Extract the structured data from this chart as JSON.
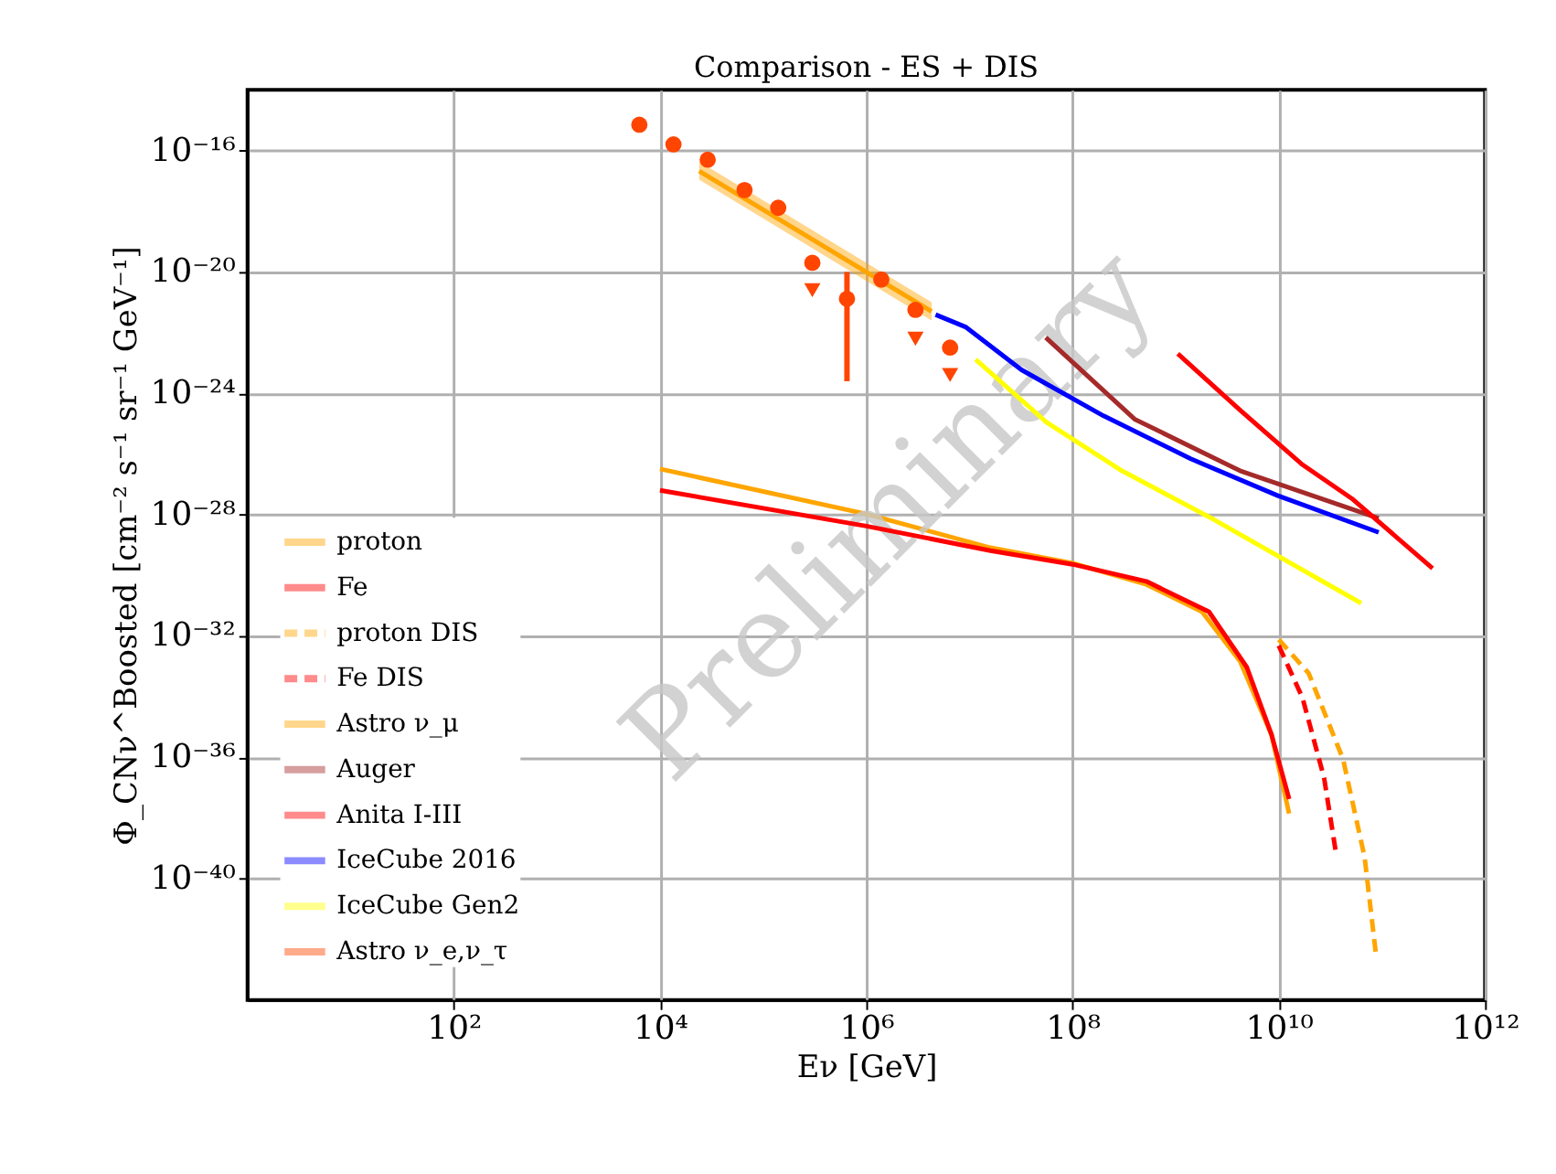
{
  "chart_data": {
    "type": "line",
    "title": "Comparison - ES + DIS",
    "xlabel": "Eν [GeV]",
    "ylabel": "Φ_CNν^Boosted [cm⁻² s⁻¹ sr⁻¹ GeV⁻¹]",
    "log": "xy",
    "xlim": [
      1,
      1000000000000.0
    ],
    "ylim": [
      1e-44,
      1e-14
    ],
    "xticks": [
      {
        "value": 100.0,
        "label": "10²"
      },
      {
        "value": 10000.0,
        "label": "10⁴"
      },
      {
        "value": 1000000.0,
        "label": "10⁶"
      },
      {
        "value": 100000000.0,
        "label": "10⁸"
      },
      {
        "value": 10000000000.0,
        "label": "10¹⁰"
      },
      {
        "value": 1000000000000.0,
        "label": "10¹²"
      }
    ],
    "yticks": [
      {
        "value": 1e-16,
        "label": "10⁻¹⁶"
      },
      {
        "value": 1e-20,
        "label": "10⁻²⁰"
      },
      {
        "value": 1e-24,
        "label": "10⁻²⁴"
      },
      {
        "value": 1e-28,
        "label": "10⁻²⁸"
      },
      {
        "value": 1e-32,
        "label": "10⁻³²"
      },
      {
        "value": 1e-36,
        "label": "10⁻³⁶"
      },
      {
        "value": 1e-40,
        "label": "10⁻⁴⁰"
      }
    ],
    "grid": true,
    "legend": "bottom left",
    "annotations": [
      "Preliminary"
    ],
    "series": [
      {
        "name": "proton",
        "color": "#ffa500",
        "x": [
          10000.0,
          1000000.0,
          16000000.0,
          100000000.0,
          520000000.0,
          1800000000.0,
          4200000000.0,
          8500000000.0,
          12600000000.0
        ],
        "values": [
          3.2e-27,
          1.05e-28,
          8.1e-30,
          2.5e-30,
          5e-31,
          6.3e-32,
          1.5e-33,
          5.6e-36,
          1.4e-38
        ]
      },
      {
        "name": "Fe",
        "color": "#ff0000",
        "x": [
          10000.0,
          1000000.0,
          16000000.0,
          100000000.0,
          520000000.0,
          2100000000.0,
          4900000000.0,
          8500000000.0,
          12600000000.0
        ],
        "values": [
          6.3e-28,
          4.2e-29,
          6.5e-30,
          2.3e-30,
          6.3e-31,
          6.3e-32,
          9.3e-34,
          5.6e-36,
          4.2e-38
        ]
      },
      {
        "name": "proton DIS",
        "color": "#ffa500",
        "line_style": "dashed",
        "x": [
          10000000000.0,
          19500000000.0,
          42000000000.0,
          68000000000.0,
          87000000000.0
        ],
        "values": [
          7.6e-33,
          5.9e-34,
          8.7e-37,
          5.1e-40,
          3.8e-43
        ]
      },
      {
        "name": "Fe DIS",
        "color": "#ff0000",
        "line_style": "dashed",
        "x": [
          10000000000.0,
          17000000000.0,
          27500000000.0,
          36000000000.0
        ],
        "values": [
          4.8e-33,
          9.1e-35,
          2.1e-37,
          6.5e-40
        ]
      },
      {
        "name": "Astro ν_μ",
        "color": "#ffa500",
        "type": "line",
        "x": [
          24000.0,
          4300000.0
        ],
        "values": [
          2.1e-17,
          5e-22
        ],
        "lower": [
          1.1e-17,
          2.5e-22
        ],
        "upper": [
          4.3e-17,
          1e-21
        ]
      },
      {
        "name": "Auger",
        "color": "#a52a2a",
        "x": [
          55000000.0,
          400000000.0,
          4200000000.0,
          93000000000.0
        ],
        "values": [
          6.9e-23,
          1.4e-25,
          2.8e-27,
          7.6e-29
        ]
      },
      {
        "name": "Anita I-III",
        "color": "#ff0000",
        "x": [
          1050000000.0,
          4200000000.0,
          17000000000.0,
          51000000000.0,
          310000000000.0
        ],
        "values": [
          2e-23,
          2.8e-25,
          4.4e-27,
          3.4e-28,
          1.7e-30
        ]
      },
      {
        "name": "IceCube 2016",
        "color": "#0000ff",
        "x": [
          4700000.0,
          9300000.0,
          32000000.0,
          200000000.0,
          1400000000.0,
          9800000000.0,
          93000000000.0
        ],
        "values": [
          3.9e-22,
          1.5e-22,
          5.9e-24,
          1.8e-25,
          6.9e-27,
          4.2e-28,
          2.6e-29
        ]
      },
      {
        "name": "IceCube Gen2",
        "color": "#ffff00",
        "x": [
          11500000.0,
          56000000.0,
          300000000.0,
          2400000000.0,
          63000000000.0
        ],
        "values": [
          1.3e-23,
          1.1e-25,
          2.8e-27,
          6.6e-29,
          1.2e-31
        ]
      },
      {
        "name": "Astro ν_e,ν_τ",
        "color": "#ff4500",
        "type": "scatter",
        "marker": "circle",
        "x": [
          6300.0,
          13500.0,
          29000.0,
          66000.0,
          140000.0,
          300000.0,
          650000.0,
          1400000.0,
          3000000.0,
          6500000.0
        ],
        "values": [
          7.1e-16,
          1.6e-16,
          5e-17,
          5e-18,
          1.3e-18,
          2e-20,
          1.3e-21,
          5.6e-21,
          5.6e-22,
          3.2e-23
        ],
        "errors": [
          null,
          null,
          null,
          null,
          null,
          null,
          [
            2.5e-24,
            1e-20
          ],
          null,
          null,
          null
        ]
      },
      {
        "color": "#ff4500",
        "type": "scatter",
        "marker": "triangle",
        "x": [
          300000.0,
          3000000.0,
          6500000.0
        ],
        "values": [
          2.5e-21,
          6.3e-23,
          4e-24
        ]
      }
    ]
  }
}
